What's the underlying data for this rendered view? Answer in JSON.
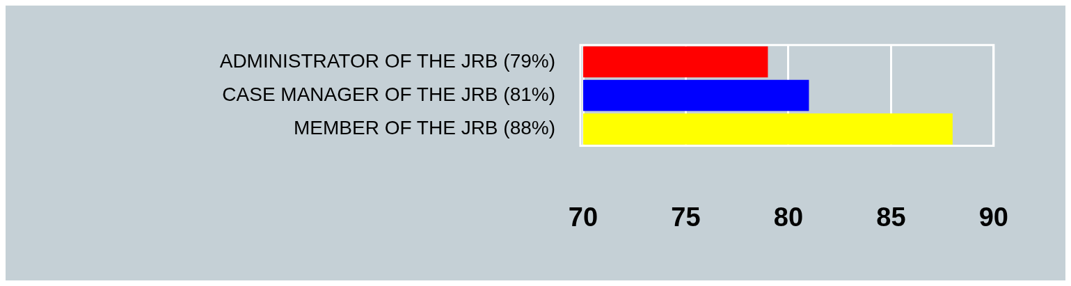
{
  "chart_data": {
    "type": "bar",
    "orientation": "horizontal",
    "categories": [
      "ADMINISTRATOR OF THE JRB (79%)",
      "CASE MANAGER OF THE JRB (81%)",
      "MEMBER OF THE JRB (88%)"
    ],
    "values": [
      79,
      81,
      88
    ],
    "colors": [
      "#ff0000",
      "#0000ff",
      "#ffff00"
    ],
    "xlim": [
      70,
      90
    ],
    "xticks": [
      70,
      75,
      80,
      85,
      90
    ],
    "grid": "x",
    "legend": false
  }
}
